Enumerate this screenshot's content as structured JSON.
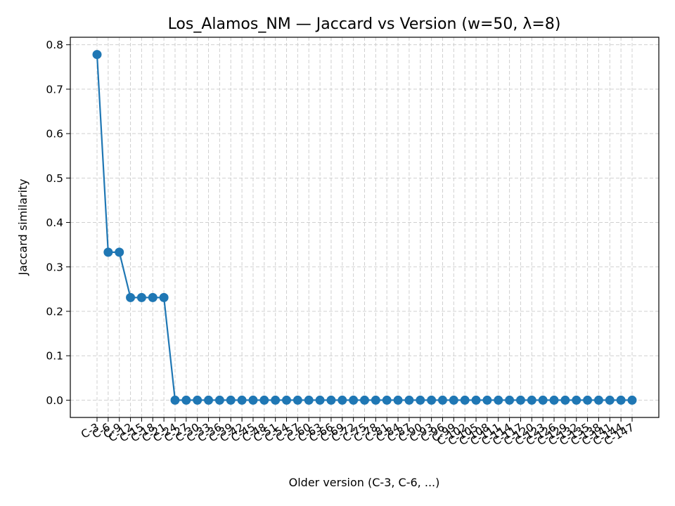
{
  "chart_data": {
    "type": "line",
    "title": "Los_Alamos_NM — Jaccard vs Version (w=50, λ=8)",
    "xlabel": "Older version (C-3, C-6, ...)",
    "ylabel": "Jaccard similarity",
    "categories": [
      "C-3",
      "C-6",
      "C-9",
      "C-12",
      "C-15",
      "C-18",
      "C-21",
      "C-24",
      "C-27",
      "C-30",
      "C-33",
      "C-36",
      "C-39",
      "C-42",
      "C-45",
      "C-48",
      "C-51",
      "C-54",
      "C-57",
      "C-60",
      "C-63",
      "C-66",
      "C-69",
      "C-72",
      "C-75",
      "C-78",
      "C-81",
      "C-84",
      "C-87",
      "C-90",
      "C-93",
      "C-96",
      "C-99",
      "C-102",
      "C-105",
      "C-108",
      "C-111",
      "C-114",
      "C-117",
      "C-120",
      "C-123",
      "C-126",
      "C-129",
      "C-132",
      "C-135",
      "C-138",
      "C-141",
      "C-144",
      "C-147"
    ],
    "series": [
      {
        "values": [
          0.778,
          0.333,
          0.333,
          0.231,
          0.231,
          0.231,
          0.231,
          0,
          0,
          0,
          0,
          0,
          0,
          0,
          0,
          0,
          0,
          0,
          0,
          0,
          0,
          0,
          0,
          0,
          0,
          0,
          0,
          0,
          0,
          0,
          0,
          0,
          0,
          0,
          0,
          0,
          0,
          0,
          0,
          0,
          0,
          0,
          0,
          0,
          0,
          0,
          0,
          0,
          0
        ]
      }
    ],
    "ylim": [
      -0.0389,
      0.8169
    ],
    "yticks": [
      0.0,
      0.1,
      0.2,
      0.3,
      0.4,
      0.5,
      0.6,
      0.7,
      0.8
    ],
    "ytick_labels": [
      "0.0",
      "0.1",
      "0.2",
      "0.3",
      "0.4",
      "0.5",
      "0.6",
      "0.7",
      "0.8"
    ],
    "grid": true,
    "legend": "none",
    "color": "#1f77b4"
  }
}
